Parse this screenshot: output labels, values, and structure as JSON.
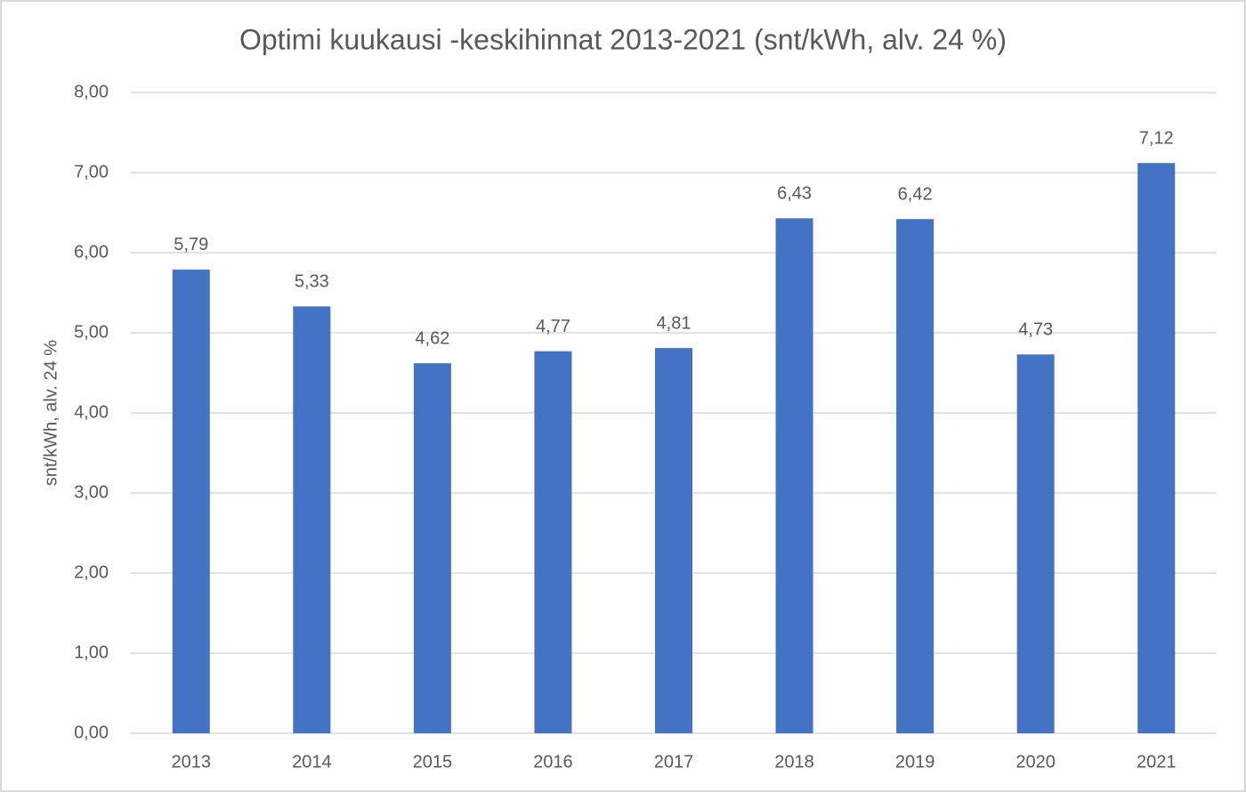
{
  "chart_data": {
    "type": "bar",
    "title": "Optimi kuukausi -keskihinnat 2013-2021 (snt/kWh, alv. 24 %)",
    "y_label": "snt/kWh, alv. 24 %",
    "categories": [
      "2013",
      "2014",
      "2015",
      "2016",
      "2017",
      "2018",
      "2019",
      "2020",
      "2021"
    ],
    "values": [
      5.79,
      5.33,
      4.62,
      4.77,
      4.81,
      6.43,
      6.42,
      4.73,
      7.12
    ],
    "value_labels": [
      "5,79",
      "5,33",
      "4,62",
      "4,77",
      "4,81",
      "6,43",
      "6,42",
      "4,73",
      "7,12"
    ],
    "color": "#4472c4",
    "ylim": [
      0,
      8
    ],
    "yticks": [
      {
        "value": 0,
        "label": "0,00"
      },
      {
        "value": 1,
        "label": "1,00"
      },
      {
        "value": 2,
        "label": "2,00"
      },
      {
        "value": 3,
        "label": "3,00"
      },
      {
        "value": 4,
        "label": "4,00"
      },
      {
        "value": 5,
        "label": "5,00"
      },
      {
        "value": 6,
        "label": "6,00"
      },
      {
        "value": 7,
        "label": "7,00"
      },
      {
        "value": 8,
        "label": "8,00"
      }
    ],
    "grid": true
  }
}
